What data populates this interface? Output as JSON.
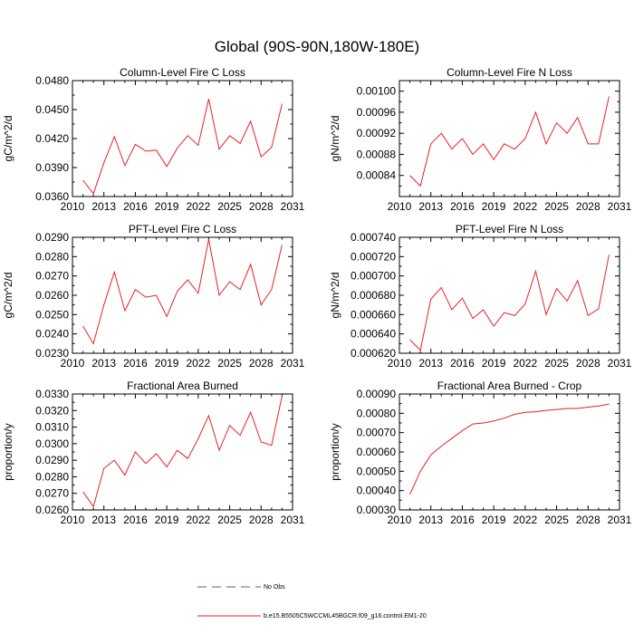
{
  "figure": {
    "title": "Global (90S-90N,180W-180E)"
  },
  "legend": {
    "entries": [
      {
        "label": "No Obs",
        "style": "dashed",
        "color": "#5a5aa0"
      },
      {
        "label": "b.e15.B5505C5WCCML45BGCR.f09_g16.control.EM1-20",
        "style": "solid",
        "color": "#e8202a"
      }
    ]
  },
  "colors": {
    "series": "#e8202a",
    "axis": "#000000"
  },
  "chart_data": [
    {
      "type": "line",
      "title": "Column-Level Fire C Loss",
      "ylabel": "gC/m^2/d",
      "xlabel": "",
      "xlim": [
        2010,
        2031
      ],
      "ylim": [
        0.036,
        0.048
      ],
      "xticks": [
        2010,
        2013,
        2016,
        2019,
        2022,
        2025,
        2028,
        2031
      ],
      "yticks": [
        "0.0360",
        "0.0390",
        "0.0420",
        "0.0450",
        "0.0480"
      ],
      "x": [
        2011,
        2012,
        2013,
        2014,
        2015,
        2016,
        2017,
        2018,
        2019,
        2020,
        2021,
        2022,
        2023,
        2024,
        2025,
        2026,
        2027,
        2028,
        2029,
        2030
      ],
      "series": [
        {
          "name": "b.e15.B5505C5WCCML45BGCR.f09_g16.control.EM1-20",
          "values": [
            0.0377,
            0.0363,
            0.0395,
            0.0422,
            0.0392,
            0.0414,
            0.0407,
            0.0408,
            0.0391,
            0.041,
            0.0423,
            0.0413,
            0.0461,
            0.0409,
            0.0423,
            0.0415,
            0.0438,
            0.0401,
            0.0411,
            0.0456
          ]
        }
      ]
    },
    {
      "type": "line",
      "title": "Column-Level Fire N Loss",
      "ylabel": "gN/m^2/d",
      "xlabel": "",
      "xlim": [
        2010,
        2031
      ],
      "ylim": [
        0.0008,
        0.00102
      ],
      "xticks": [
        2010,
        2013,
        2016,
        2019,
        2022,
        2025,
        2028,
        2031
      ],
      "yticks": [
        "0.00084",
        "0.00088",
        "0.00092",
        "0.00096",
        "0.00100"
      ],
      "x": [
        2011,
        2012,
        2013,
        2014,
        2015,
        2016,
        2017,
        2018,
        2019,
        2020,
        2021,
        2022,
        2023,
        2024,
        2025,
        2026,
        2027,
        2028,
        2029,
        2030
      ],
      "series": [
        {
          "name": "b.e15.B5505C5WCCML45BGCR.f09_g16.control.EM1-20",
          "values": [
            0.00084,
            0.00082,
            0.0009,
            0.00092,
            0.00089,
            0.00091,
            0.00088,
            0.0009,
            0.00087,
            0.0009,
            0.00089,
            0.00091,
            0.00096,
            0.0009,
            0.00094,
            0.00092,
            0.00095,
            0.0009,
            0.0009,
            0.00099
          ]
        }
      ]
    },
    {
      "type": "line",
      "title": "PFT-Level Fire C Loss",
      "ylabel": "gC/m^2/d",
      "xlabel": "",
      "xlim": [
        2010,
        2031
      ],
      "ylim": [
        0.023,
        0.029
      ],
      "xticks": [
        2010,
        2013,
        2016,
        2019,
        2022,
        2025,
        2028,
        2031
      ],
      "yticks": [
        "0.0230",
        "0.0240",
        "0.0250",
        "0.0260",
        "0.0270",
        "0.0280",
        "0.0290"
      ],
      "x": [
        2011,
        2012,
        2013,
        2014,
        2015,
        2016,
        2017,
        2018,
        2019,
        2020,
        2021,
        2022,
        2023,
        2024,
        2025,
        2026,
        2027,
        2028,
        2029,
        2030
      ],
      "series": [
        {
          "name": "b.e15.B5505C5WCCML45BGCR.f09_g16.control.EM1-20",
          "values": [
            0.0244,
            0.0235,
            0.0255,
            0.0272,
            0.0252,
            0.0263,
            0.0259,
            0.026,
            0.0249,
            0.0262,
            0.0268,
            0.0261,
            0.0289,
            0.026,
            0.0267,
            0.0263,
            0.0276,
            0.0255,
            0.0263,
            0.0286
          ]
        }
      ]
    },
    {
      "type": "line",
      "title": "PFT-Level Fire N Loss",
      "ylabel": "gN/m^2/d",
      "xlabel": "",
      "xlim": [
        2010,
        2031
      ],
      "ylim": [
        0.00062,
        0.00074
      ],
      "xticks": [
        2010,
        2013,
        2016,
        2019,
        2022,
        2025,
        2028,
        2031
      ],
      "yticks": [
        "0.000620",
        "0.000640",
        "0.000660",
        "0.000680",
        "0.000700",
        "0.000720",
        "0.000740"
      ],
      "x": [
        2011,
        2012,
        2013,
        2014,
        2015,
        2016,
        2017,
        2018,
        2019,
        2020,
        2021,
        2022,
        2023,
        2024,
        2025,
        2026,
        2027,
        2028,
        2029,
        2030
      ],
      "series": [
        {
          "name": "b.e15.B5505C5WCCML45BGCR.f09_g16.control.EM1-20",
          "values": [
            0.000634,
            0.000623,
            0.000676,
            0.000688,
            0.000665,
            0.000677,
            0.000656,
            0.000665,
            0.000648,
            0.000662,
            0.000659,
            0.000671,
            0.000705,
            0.00066,
            0.000687,
            0.000674,
            0.000695,
            0.000659,
            0.000666,
            0.000722
          ]
        }
      ]
    },
    {
      "type": "line",
      "title": "Fractional Area Burned",
      "ylabel": "proportion/y",
      "xlabel": "",
      "xlim": [
        2010,
        2031
      ],
      "ylim": [
        0.026,
        0.033
      ],
      "xticks": [
        2010,
        2013,
        2016,
        2019,
        2022,
        2025,
        2028,
        2031
      ],
      "yticks": [
        "0.0260",
        "0.0270",
        "0.0280",
        "0.0290",
        "0.0300",
        "0.0310",
        "0.0320",
        "0.0330"
      ],
      "x": [
        2011,
        2012,
        2013,
        2014,
        2015,
        2016,
        2017,
        2018,
        2019,
        2020,
        2021,
        2022,
        2023,
        2024,
        2025,
        2026,
        2027,
        2028,
        2029,
        2030
      ],
      "series": [
        {
          "name": "b.e15.B5505C5WCCML45BGCR.f09_g16.control.EM1-20",
          "values": [
            0.0271,
            0.0262,
            0.0285,
            0.029,
            0.0281,
            0.0295,
            0.0288,
            0.0294,
            0.0286,
            0.0296,
            0.0291,
            0.0303,
            0.0317,
            0.0296,
            0.0311,
            0.0305,
            0.0319,
            0.0301,
            0.0299,
            0.0329
          ]
        }
      ]
    },
    {
      "type": "line",
      "title": "Fractional Area Burned - Crop",
      "ylabel": "proportion/y",
      "xlabel": "",
      "xlim": [
        2010,
        2031
      ],
      "ylim": [
        0.0003,
        0.0009
      ],
      "xticks": [
        2010,
        2013,
        2016,
        2019,
        2022,
        2025,
        2028,
        2031
      ],
      "yticks": [
        "0.00030",
        "0.00040",
        "0.00050",
        "0.00060",
        "0.00070",
        "0.00080",
        "0.00090"
      ],
      "x": [
        2011,
        2012,
        2013,
        2014,
        2015,
        2016,
        2017,
        2018,
        2019,
        2020,
        2021,
        2022,
        2023,
        2024,
        2025,
        2026,
        2027,
        2028,
        2029,
        2030
      ],
      "series": [
        {
          "name": "b.e15.B5505C5WCCML45BGCR.f09_g16.control.EM1-20",
          "values": [
            0.00038,
            0.0005,
            0.000585,
            0.00063,
            0.00067,
            0.00071,
            0.000745,
            0.00075,
            0.00076,
            0.000775,
            0.000795,
            0.000805,
            0.000808,
            0.000815,
            0.00082,
            0.000825,
            0.000825,
            0.000832,
            0.000838,
            0.000848
          ]
        }
      ]
    }
  ]
}
